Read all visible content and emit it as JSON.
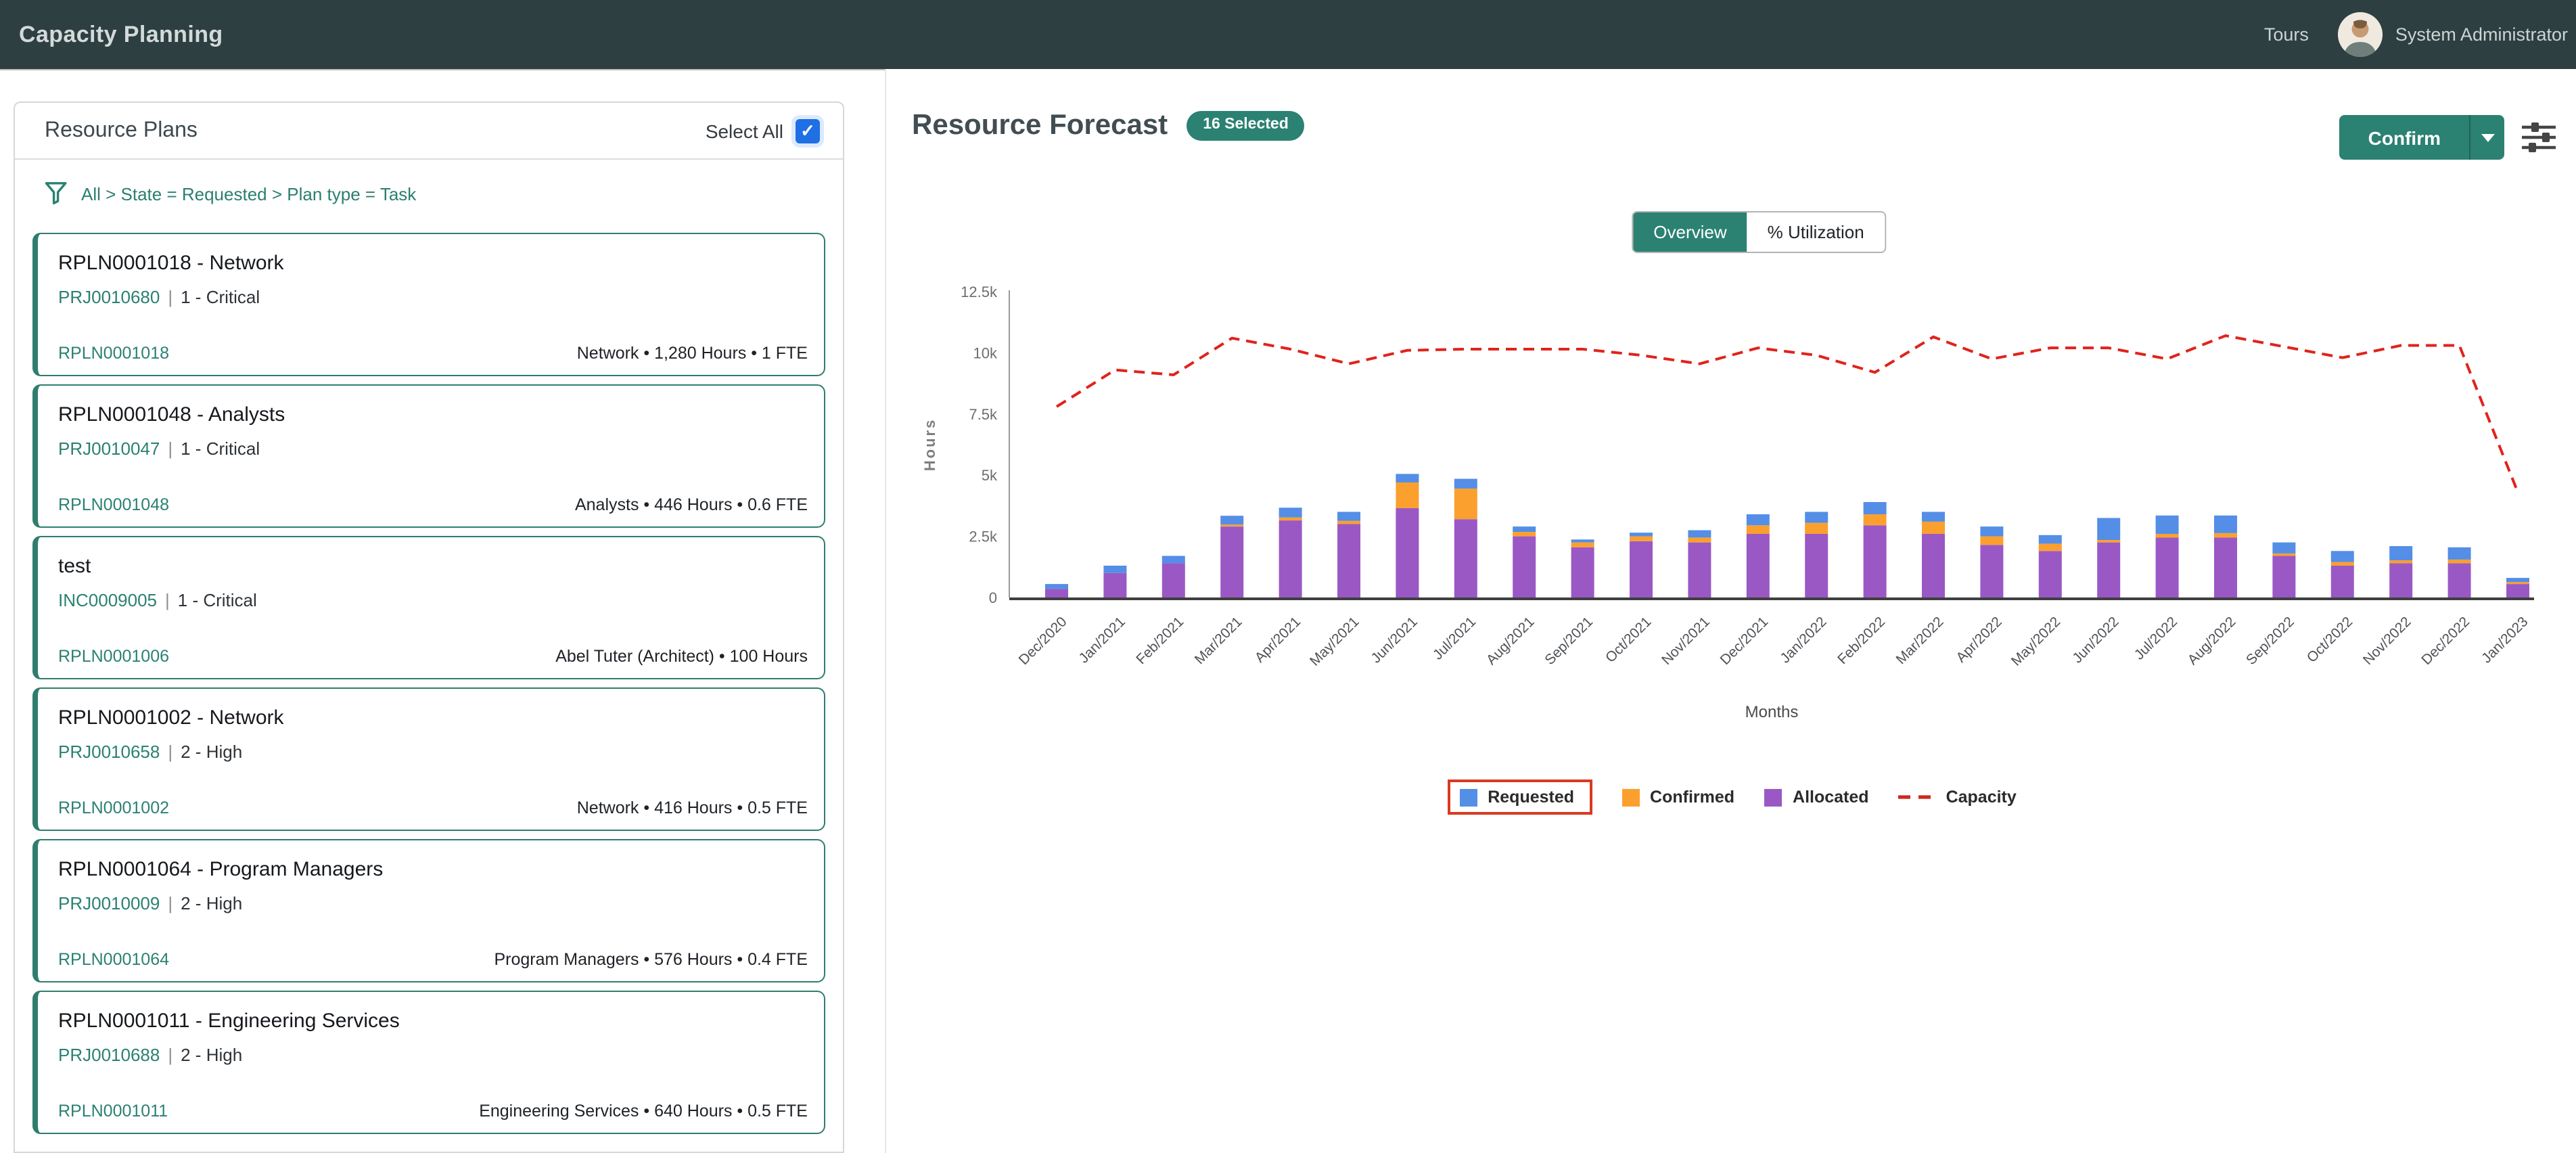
{
  "header": {
    "title": "Capacity Planning",
    "tours_label": "Tours",
    "user_name": "System Administrator"
  },
  "left_panel": {
    "title": "Resource Plans",
    "select_all_label": "Select All",
    "filter_breadcrumb": "All > State = Requested > Plan type = Task",
    "meta_divider": "|",
    "plans": [
      {
        "title": "RPLN0001018 - Network",
        "task_link": "PRJ0010680",
        "priority": "1 - Critical",
        "plan_number": "RPLN0001018",
        "summary": "Network • 1,280 Hours •  1 FTE"
      },
      {
        "title": "RPLN0001048 - Analysts",
        "task_link": "PRJ0010047",
        "priority": "1 - Critical",
        "plan_number": "RPLN0001048",
        "summary": "Analysts • 446 Hours •  0.6 FTE"
      },
      {
        "title": "test",
        "task_link": "INC0009005",
        "priority": "1 - Critical",
        "plan_number": "RPLN0001006",
        "summary": "Abel Tuter (Architect) • 100 Hours"
      },
      {
        "title": "RPLN0001002 - Network",
        "task_link": "PRJ0010658",
        "priority": "2 - High",
        "plan_number": "RPLN0001002",
        "summary": "Network • 416 Hours •  0.5 FTE"
      },
      {
        "title": "RPLN0001064 - Program Managers",
        "task_link": "PRJ0010009",
        "priority": "2 - High",
        "plan_number": "RPLN0001064",
        "summary": "Program Managers • 576 Hours •  0.4 FTE"
      },
      {
        "title": "RPLN0001011 - Engineering Services",
        "task_link": "PRJ0010688",
        "priority": "2 - High",
        "plan_number": "RPLN0001011",
        "summary": "Engineering Services • 640 Hours •  0.5 FTE"
      }
    ]
  },
  "forecast": {
    "title": "Resource Forecast",
    "selected_badge": "16 Selected",
    "confirm_label": "Confirm",
    "tabs": [
      {
        "label": "Overview",
        "active": true
      },
      {
        "label": "% Utilization",
        "active": false
      }
    ]
  },
  "chart_data": {
    "type": "stacked-bar+line",
    "xlabel": "Months",
    "ylabel": "Hours",
    "ylim": [
      0,
      12500
    ],
    "yticks": [
      "0",
      "2.5k",
      "5k",
      "7.5k",
      "10k",
      "12.5k"
    ],
    "grid": false,
    "legend_position": "bottom",
    "legend_highlight": "Requested",
    "x": [
      "Dec/2020",
      "Jan/2021",
      "Feb/2021",
      "Mar/2021",
      "Apr/2021",
      "May/2021",
      "Jun/2021",
      "Jul/2021",
      "Aug/2021",
      "Sep/2021",
      "Oct/2021",
      "Nov/2021",
      "Dec/2021",
      "Jan/2022",
      "Feb/2022",
      "Mar/2022",
      "Apr/2022",
      "May/2022",
      "Jun/2022",
      "Jul/2022",
      "Aug/2022",
      "Sep/2022",
      "Oct/2022",
      "Nov/2022",
      "Dec/2022",
      "Jan/2023"
    ],
    "series": [
      {
        "name": "Requested",
        "kind": "bar",
        "color": "#548ee6",
        "values": [
          200,
          300,
          300,
          360,
          400,
          370,
          350,
          400,
          220,
          120,
          150,
          300,
          450,
          450,
          500,
          400,
          400,
          350,
          900,
          750,
          720,
          450,
          450,
          580,
          500,
          170
        ]
      },
      {
        "name": "Confirmed",
        "kind": "bar",
        "color": "#fba02e",
        "values": [
          0,
          0,
          0,
          80,
          120,
          130,
          1050,
          1250,
          180,
          200,
          200,
          200,
          350,
          450,
          450,
          500,
          350,
          300,
          100,
          150,
          180,
          100,
          150,
          120,
          150,
          80
        ]
      },
      {
        "name": "Allocated",
        "kind": "bar",
        "color": "#9a58c5",
        "values": [
          350,
          1000,
          1400,
          2900,
          3150,
          3000,
          3650,
          3200,
          2500,
          2050,
          2300,
          2250,
          2600,
          2600,
          2950,
          2600,
          2150,
          1900,
          2250,
          2450,
          2450,
          1700,
          1300,
          1400,
          1400,
          550
        ]
      },
      {
        "name": "Capacity",
        "kind": "dashed-line",
        "color": "#e0231c",
        "values": [
          7800,
          9300,
          9100,
          10600,
          10150,
          9550,
          10100,
          10150,
          10150,
          10150,
          9900,
          9550,
          10200,
          9900,
          9200,
          10650,
          9750,
          10200,
          10200,
          9750,
          10700,
          10250,
          9800,
          10300,
          10300,
          4300
        ]
      }
    ],
    "stack_order_bottom_to_top": [
      "Allocated",
      "Confirmed",
      "Requested"
    ]
  },
  "colors": {
    "accent_teal": "#2b8172",
    "header_bg": "#2e3f41",
    "checkbox_blue": "#1f6fe5",
    "requested_blue": "#548ee6",
    "confirmed_orange": "#fba02e",
    "allocated_purple": "#9a58c5",
    "capacity_red": "#e0231c",
    "legend_highlight_red": "#d93a20"
  }
}
